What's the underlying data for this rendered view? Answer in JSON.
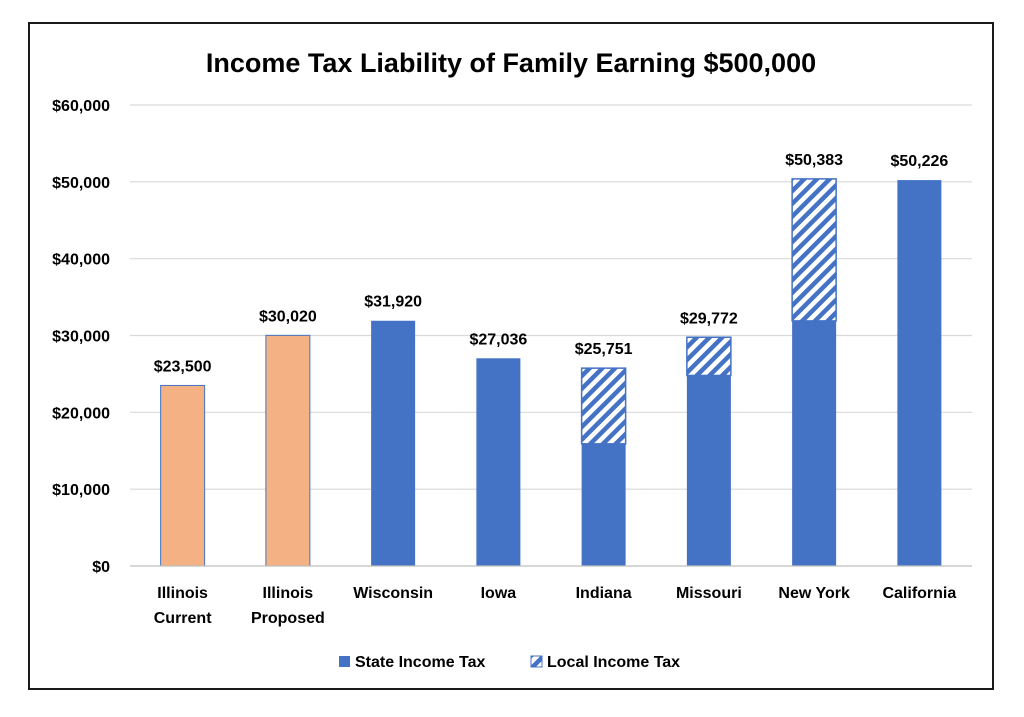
{
  "chart_data": {
    "type": "bar",
    "stacked": true,
    "title": "Income Tax Liability of Family Earning $500,000",
    "xlabel": "",
    "ylabel": "",
    "ylim": [
      0,
      60000
    ],
    "yticks": [
      0,
      10000,
      20000,
      30000,
      40000,
      50000,
      60000
    ],
    "ytick_labels": [
      "$0",
      "$10,000",
      "$20,000",
      "$30,000",
      "$40,000",
      "$50,000",
      "$60,000"
    ],
    "grid": true,
    "legend_position": "bottom",
    "categories": [
      [
        "Illinois",
        "Current"
      ],
      [
        "Illinois",
        "Proposed"
      ],
      [
        "Wisconsin"
      ],
      [
        "Iowa"
      ],
      [
        "Indiana"
      ],
      [
        "Missouri"
      ],
      [
        "New York"
      ],
      [
        "California"
      ]
    ],
    "highlight_categories": [
      0,
      1
    ],
    "highlight_color": "#F4B183",
    "series": [
      {
        "name": "State Income Tax",
        "color": "#4472C4",
        "pattern": "solid",
        "values": [
          23500,
          30020,
          31920,
          27036,
          15900,
          24800,
          31900,
          50226
        ]
      },
      {
        "name": "Local Income Tax",
        "color": "#4472C4",
        "pattern": "diagonal-stripes",
        "values": [
          0,
          0,
          0,
          0,
          9851,
          4972,
          18483,
          0
        ]
      }
    ],
    "totals": [
      23500,
      30020,
      31920,
      27036,
      25751,
      29772,
      50383,
      50226
    ],
    "total_labels": [
      "$23,500",
      "$30,020",
      "$31,920",
      "$27,036",
      "$25,751",
      "$29,772",
      "$50,383",
      "$50,226"
    ]
  }
}
